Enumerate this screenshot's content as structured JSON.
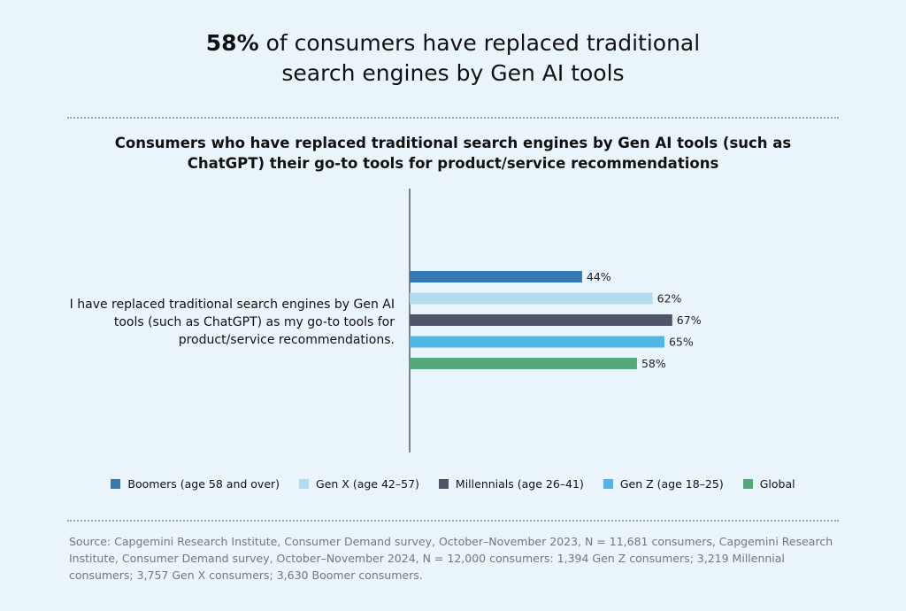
{
  "header": {
    "title_bold": "58%",
    "title_rest": " of consumers have replaced traditional search engines by Gen AI tools"
  },
  "chart_data": {
    "type": "bar",
    "orientation": "horizontal",
    "title": "Consumers who have replaced traditional search engines by Gen AI tools (such as ChatGPT) their go-to tools for product/service recommendations",
    "categories": [
      "I have replaced traditional search engines by Gen AI tools (such as ChatGPT) as my go-to tools for product/service recommendations."
    ],
    "series": [
      {
        "name": "Boomers (age 58 and over)",
        "values": [
          44
        ],
        "label": "44%",
        "color": "#337ab3"
      },
      {
        "name": "Gen X (age 42–57)",
        "values": [
          62
        ],
        "label": "62%",
        "color": "#b3ddee"
      },
      {
        "name": "Millennials (age 26–41)",
        "values": [
          67
        ],
        "label": "67%",
        "color": "#525569"
      },
      {
        "name": "Gen Z (age 18–25)",
        "values": [
          65
        ],
        "label": "65%",
        "color": "#50b7e3"
      },
      {
        "name": "Global",
        "values": [
          58
        ],
        "label": "58%",
        "color": "#56a878"
      }
    ],
    "xlim": [
      0,
      100
    ],
    "legend_position": "bottom",
    "grid": false
  },
  "source": "Source: Capgemini Research Institute, Consumer Demand survey, October–November 2023, N = 11,681 consumers, Capgemini Research Institute, Consumer Demand survey, October–November 2024, N = 12,000 consumers: 1,394 Gen Z consumers; 3,219 Millennial consumers; 3,757 Gen X consumers; 3,630 Boomer consumers."
}
